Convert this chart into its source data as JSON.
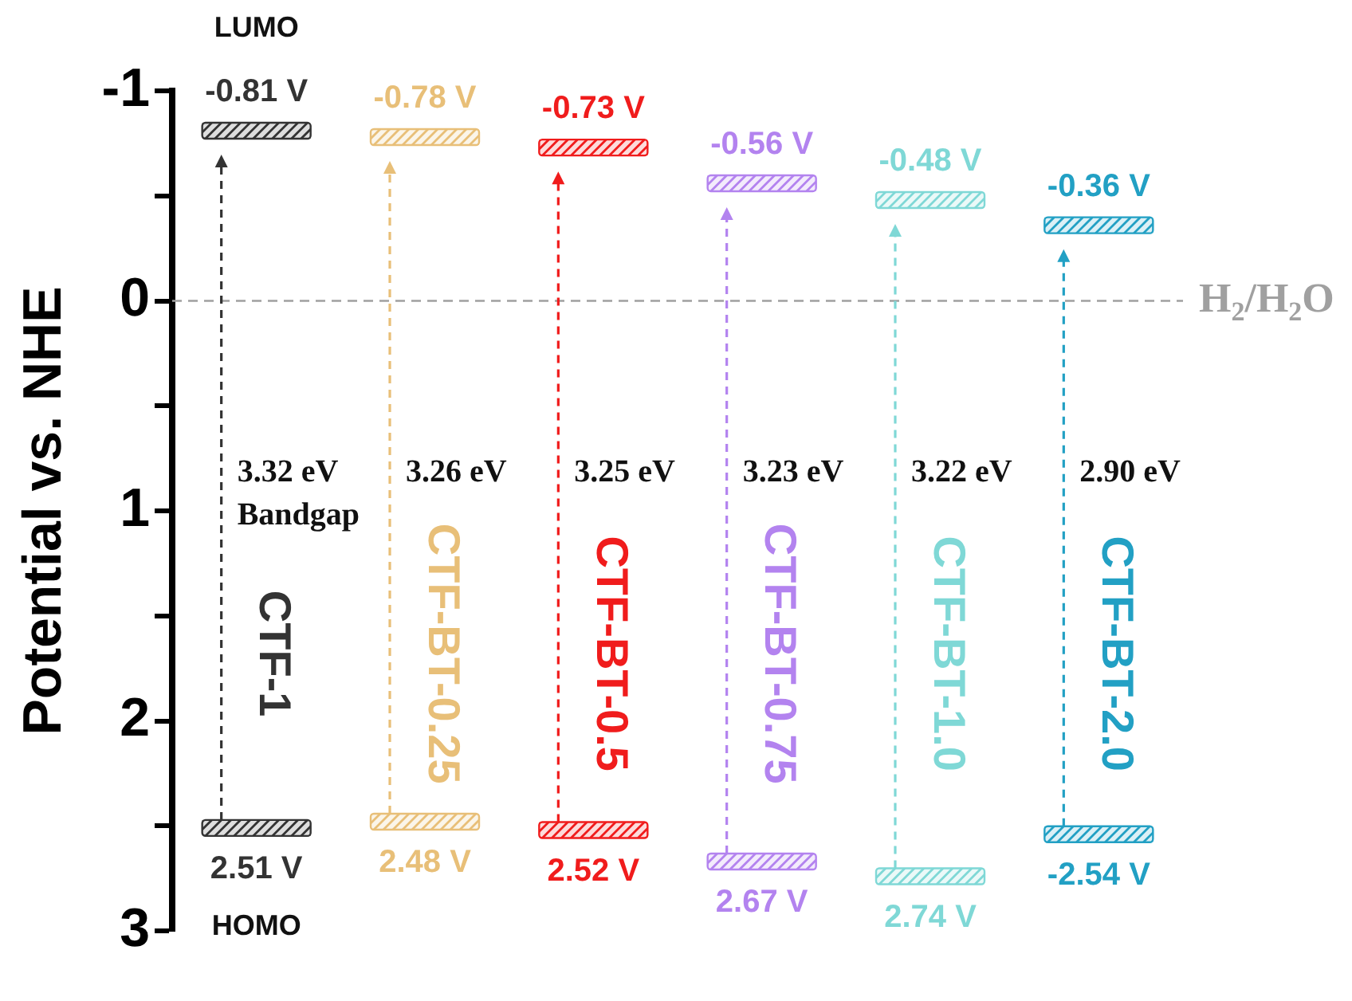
{
  "chart_data": {
    "type": "scatter",
    "ylabel": "Potential vs. NHE",
    "categories": [
      "CTF-1",
      "CTF-BT-0.25",
      "CTF-BT-0.5",
      "CTF-BT-0.75",
      "CTF-BT-1.0",
      "CTF-BT-2.0"
    ],
    "series": [
      {
        "name": "LUMO",
        "colors": [
          "#333333",
          "#e8bf78",
          "#f01c1c",
          "#b383ef",
          "#7fd8d6",
          "#22a0c4"
        ],
        "values": [
          -0.81,
          -0.78,
          -0.73,
          -0.56,
          -0.48,
          -0.36
        ],
        "value_labels": [
          "-0.81 V",
          "-0.78 V",
          "-0.73 V",
          "-0.56 V",
          "-0.48 V",
          "-0.36 V"
        ]
      },
      {
        "name": "HOMO",
        "colors": [
          "#333333",
          "#e8bf78",
          "#f01c1c",
          "#b383ef",
          "#7fd8d6",
          "#22a0c4"
        ],
        "values": [
          2.51,
          2.48,
          2.52,
          2.67,
          2.74,
          2.54
        ],
        "value_labels": [
          "2.51 V",
          "2.48 V",
          "2.52 V",
          "2.67 V",
          "2.74 V",
          null
        ]
      }
    ],
    "ylim": [
      3,
      -1
    ],
    "yticks": [
      -1,
      {
        "value": -0.5,
        "label": null
      },
      0,
      {
        "value": 0.5,
        "label": null
      },
      1,
      {
        "value": 1.5,
        "label": null
      },
      2,
      {
        "value": 2.5,
        "label": null
      },
      3
    ],
    "ref_lines": [
      {
        "axis": "y",
        "value": 0,
        "label": "H$_{2}$/H$_{2}$O",
        "color": "#a0a0a0",
        "line_style": "dashed"
      }
    ],
    "annotations": [
      "3.32 eV\nBandgap",
      "3.26 eV",
      "3.25 eV",
      "3.23 eV",
      "3.22 eV",
      "2.90 eV",
      {
        "text": "-2.54 V",
        "x": "CTF-BT-2.0",
        "y": 2.54
      }
    ]
  }
}
